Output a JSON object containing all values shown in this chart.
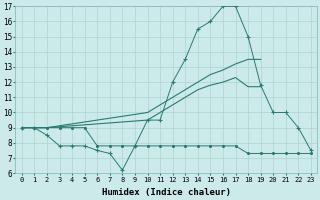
{
  "xlabel": "Humidex (Indice chaleur)",
  "ylabel": "",
  "background_color": "#cceaea",
  "line_color": "#2a7a6f",
  "grid_color": "#aed4d0",
  "xmin": 0,
  "xmax": 23,
  "ymin": 6,
  "ymax": 17,
  "series": [
    {
      "x": [
        0,
        1,
        2,
        3,
        4,
        5,
        6,
        7,
        8,
        9,
        10,
        11,
        12,
        13,
        14,
        15,
        16,
        17,
        18,
        19,
        20,
        21,
        22,
        23
      ],
      "y": [
        9,
        9,
        8.5,
        7.8,
        7.8,
        7.8,
        7.5,
        7.3,
        6.2,
        7.8,
        9.5,
        9.5,
        12,
        13.5,
        15.5,
        16.0,
        17.0,
        17.0,
        15.0,
        11.8,
        10.0,
        10.0,
        9.0,
        7.5
      ],
      "marker": "+"
    },
    {
      "x": [
        0,
        2,
        10,
        11,
        12,
        13,
        14,
        15,
        16,
        17,
        18,
        19
      ],
      "y": [
        9,
        9,
        10.0,
        10.5,
        11.0,
        11.5,
        12.0,
        12.5,
        12.8,
        13.2,
        13.5,
        13.5
      ],
      "marker": null
    },
    {
      "x": [
        0,
        2,
        10,
        11,
        12,
        13,
        14,
        15,
        16,
        17,
        18,
        19
      ],
      "y": [
        9,
        9,
        9.5,
        10.0,
        10.5,
        11.0,
        11.5,
        11.8,
        12.0,
        12.3,
        11.7,
        11.7
      ],
      "marker": null
    },
    {
      "x": [
        0,
        1,
        2,
        3,
        4,
        5,
        6,
        7,
        8,
        9,
        10,
        11,
        12,
        13,
        14,
        15,
        16,
        17,
        18,
        19,
        20,
        21,
        22,
        23
      ],
      "y": [
        9,
        9,
        9,
        9,
        9,
        9,
        7.8,
        7.8,
        7.8,
        7.8,
        7.8,
        7.8,
        7.8,
        7.8,
        7.8,
        7.8,
        7.8,
        7.8,
        7.3,
        7.3,
        7.3,
        7.3,
        7.3,
        7.3
      ],
      "marker": "."
    }
  ]
}
